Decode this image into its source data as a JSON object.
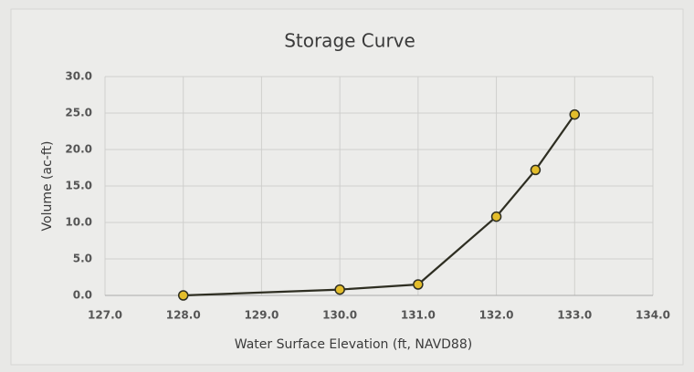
{
  "chart_data": {
    "type": "line",
    "title": "Storage Curve",
    "x_label": "Water Surface Elevation (ft, NAVD88)",
    "y_label": "Volume (ac-ft)",
    "x": [
      128,
      130,
      131,
      132,
      132.5,
      133
    ],
    "series": [
      {
        "color": "#2e2e22",
        "marker_color": "#e3bd2b",
        "values": [
          0,
          0.8,
          1.5,
          10.8,
          17.2,
          24.8
        ]
      }
    ],
    "xlim": [
      127,
      134
    ],
    "xticks": [
      {
        "value": 127,
        "label": "127.0"
      },
      {
        "value": 128,
        "label": "128.0"
      },
      {
        "value": 129,
        "label": "129.0"
      },
      {
        "value": 130,
        "label": "130.0"
      },
      {
        "value": 131,
        "label": "131.0"
      },
      {
        "value": 132,
        "label": "132.0"
      },
      {
        "value": 133,
        "label": "133.0"
      },
      {
        "value": 134,
        "label": "134.0"
      }
    ],
    "ylim": [
      0,
      30
    ],
    "yticks": [
      {
        "value": 0,
        "label": "0.0"
      },
      {
        "value": 5,
        "label": "5.0"
      },
      {
        "value": 10,
        "label": "10.0"
      },
      {
        "value": 15,
        "label": "15.0"
      },
      {
        "value": 20,
        "label": "20.0"
      },
      {
        "value": 25,
        "label": "25.0"
      },
      {
        "value": 30,
        "label": "30.0"
      }
    ],
    "grid": true
  }
}
